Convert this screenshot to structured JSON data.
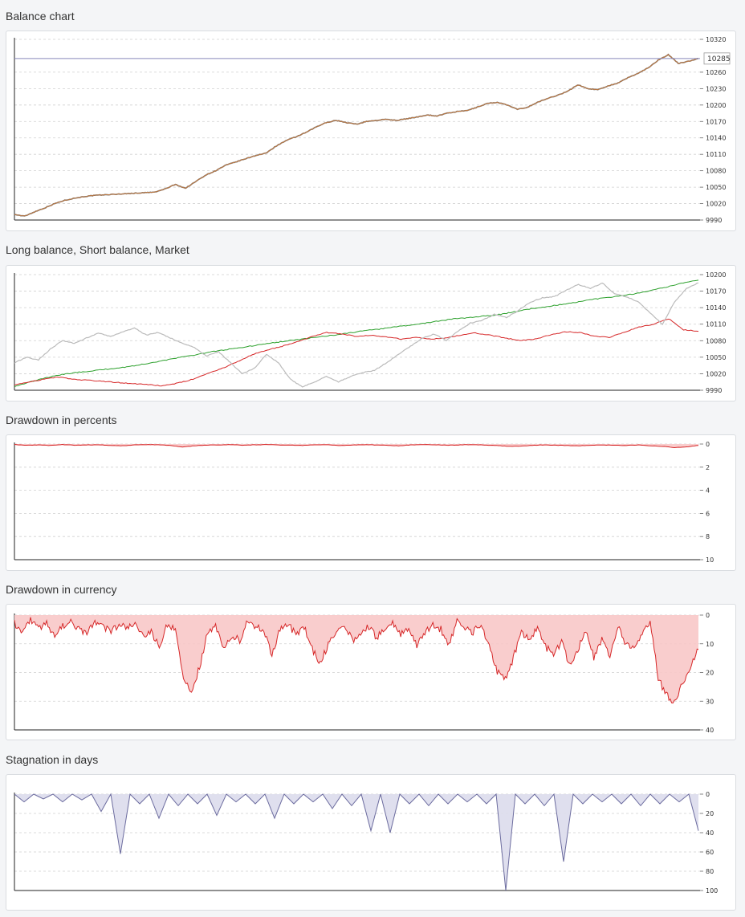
{
  "sections": [
    {
      "title": "Balance chart"
    },
    {
      "title": "Long balance, Short balance, Market"
    },
    {
      "title": "Drawdown in percents"
    },
    {
      "title": "Drawdown in currency"
    },
    {
      "title": "Stagnation in days"
    }
  ],
  "chart_data": [
    {
      "id": "balance",
      "type": "line",
      "title": "Balance chart",
      "ylim": [
        9990,
        10320
      ],
      "yticks": [
        10320,
        10260,
        10230,
        10200,
        10170,
        10140,
        10110,
        10080,
        10050,
        10020,
        9990
      ],
      "grid": true,
      "current_value": "10285",
      "colors": {
        "line": "#c97a3c",
        "line_dark": "#6d6d6d",
        "current": "#8888bb"
      },
      "series": [
        {
          "values": [
            10000,
            9997,
            10005,
            10012,
            10020,
            10026,
            10030,
            10033,
            10035,
            10036,
            10037,
            10038,
            10039,
            10040,
            10041,
            10047,
            10055,
            10048,
            10060,
            10072,
            10080,
            10090,
            10096,
            10102,
            10108,
            10112,
            10125,
            10135,
            10142,
            10150,
            10160,
            10168,
            10172,
            10168,
            10165,
            10170,
            10172,
            10174,
            10172,
            10175,
            10178,
            10182,
            10180,
            10185,
            10188,
            10190,
            10196,
            10203,
            10205,
            10200,
            10192,
            10196,
            10205,
            10212,
            10218,
            10225,
            10237,
            10230,
            10228,
            10235,
            10240,
            10250,
            10258,
            10268,
            10282,
            10292,
            10276,
            10280,
            10285
          ]
        }
      ]
    },
    {
      "id": "long-short-market",
      "type": "line",
      "title": "Long balance, Short balance, Market",
      "ylim": [
        9990,
        10200
      ],
      "yticks": [
        10200,
        10170,
        10140,
        10110,
        10080,
        10050,
        10020,
        9990
      ],
      "grid": true,
      "colors": {
        "long": "#2ca02c",
        "short": "#d62728",
        "market": "#bbbbbb"
      },
      "series": [
        {
          "key": "long",
          "values": [
            9997,
            10005,
            10012,
            10018,
            10022,
            10025,
            10028,
            10031,
            10035,
            10040,
            10045,
            10050,
            10055,
            10060,
            10064,
            10068,
            10072,
            10076,
            10080,
            10083,
            10087,
            10090,
            10094,
            10098,
            10101,
            10105,
            10108,
            10112,
            10116,
            10120,
            10122,
            10125,
            10128,
            10133,
            10138,
            10142,
            10146,
            10150,
            10155,
            10158,
            10162,
            10166,
            10172,
            10178,
            10185,
            10190
          ]
        },
        {
          "key": "short",
          "values": [
            10000,
            10005,
            10010,
            10014,
            10010,
            10008,
            10006,
            10004,
            10002,
            10000,
            9998,
            10003,
            10010,
            10020,
            10030,
            10042,
            10055,
            10063,
            10070,
            10078,
            10087,
            10095,
            10092,
            10088,
            10090,
            10087,
            10083,
            10086,
            10083,
            10085,
            10090,
            10094,
            10090,
            10085,
            10080,
            10083,
            10090,
            10096,
            10095,
            10088,
            10086,
            10095,
            10105,
            10110,
            10120,
            10100,
            10097
          ]
        },
        {
          "key": "market",
          "values": [
            10040,
            10050,
            10045,
            10065,
            10080,
            10075,
            10085,
            10094,
            10088,
            10096,
            10103,
            10090,
            10095,
            10085,
            10075,
            10068,
            10052,
            10060,
            10040,
            10020,
            10030,
            10055,
            10040,
            10010,
            9996,
            10005,
            10015,
            10005,
            10015,
            10022,
            10026,
            10040,
            10055,
            10070,
            10085,
            10092,
            10080,
            10098,
            10112,
            10117,
            10128,
            10122,
            10135,
            10150,
            10158,
            10160,
            10172,
            10182,
            10175,
            10185,
            10165,
            10160,
            10150,
            10130,
            10110,
            10150,
            10175,
            10185
          ]
        }
      ]
    },
    {
      "id": "drawdown-percent",
      "type": "area",
      "title": "Drawdown in percents",
      "ylim": [
        0,
        10
      ],
      "yticks": [
        0,
        2,
        4,
        6,
        8,
        10
      ],
      "grid": true,
      "colors": {
        "line": "#d62728",
        "fill": "#f8c8c8"
      },
      "series": [
        {
          "values": [
            0.05,
            0.1,
            0.08,
            0.12,
            0.05,
            0.1,
            0.08,
            0.06,
            0.12,
            0.15,
            0.08,
            0.05,
            0.07,
            0.12,
            0.25,
            0.15,
            0.1,
            0.08,
            0.05,
            0.1,
            0.07,
            0.05,
            0.08,
            0.1,
            0.12,
            0.08,
            0.06,
            0.12,
            0.1,
            0.05,
            0.08,
            0.1,
            0.15,
            0.08,
            0.05,
            0.06,
            0.1,
            0.08,
            0.05,
            0.08,
            0.12,
            0.18,
            0.2,
            0.12,
            0.08,
            0.1,
            0.12,
            0.15,
            0.1,
            0.08,
            0.1,
            0.12,
            0.08,
            0.15,
            0.2,
            0.3,
            0.25,
            0.12
          ]
        }
      ]
    },
    {
      "id": "drawdown-currency",
      "type": "area",
      "title": "Drawdown in currency",
      "ylim": [
        0,
        40
      ],
      "yticks": [
        0,
        10,
        20,
        30,
        40
      ],
      "grid": true,
      "colors": {
        "line": "#d62728",
        "fill": "#f8c8c8"
      },
      "series": [
        {
          "values": [
            3,
            6,
            2,
            5,
            3,
            7,
            4,
            2,
            5,
            6,
            3,
            4,
            6,
            3,
            5,
            2,
            8,
            6,
            11,
            3,
            5,
            22,
            27,
            18,
            6,
            4,
            12,
            7,
            9,
            2,
            4,
            6,
            14,
            5,
            3,
            7,
            4,
            12,
            17,
            10,
            5,
            3,
            9,
            6,
            4,
            8,
            5,
            3,
            7,
            4,
            11,
            6,
            3,
            5,
            10,
            2,
            4,
            6,
            3,
            11,
            20,
            22,
            15,
            6,
            9,
            4,
            11,
            14,
            9,
            18,
            12,
            5,
            15,
            8,
            14,
            4,
            10,
            12,
            6,
            2,
            22,
            28,
            30,
            24,
            18,
            12
          ]
        }
      ]
    },
    {
      "id": "stagnation-days",
      "type": "area",
      "title": "Stagnation in days",
      "ylim": [
        0,
        100
      ],
      "yticks": [
        0,
        20,
        40,
        60,
        80,
        100
      ],
      "grid": true,
      "colors": {
        "line": "#6b6b9e",
        "fill": "#dcdcec"
      },
      "series": [
        {
          "values": [
            0,
            8,
            0,
            5,
            0,
            8,
            0,
            6,
            0,
            18,
            0,
            62,
            0,
            10,
            0,
            25,
            0,
            12,
            0,
            10,
            0,
            22,
            0,
            8,
            0,
            10,
            0,
            25,
            0,
            10,
            0,
            8,
            0,
            15,
            0,
            12,
            0,
            38,
            0,
            40,
            0,
            10,
            0,
            12,
            0,
            10,
            0,
            8,
            0,
            10,
            0,
            100,
            0,
            10,
            0,
            12,
            0,
            70,
            0,
            10,
            0,
            8,
            0,
            10,
            0,
            12,
            0,
            10,
            0,
            8,
            0,
            38
          ]
        }
      ]
    }
  ]
}
